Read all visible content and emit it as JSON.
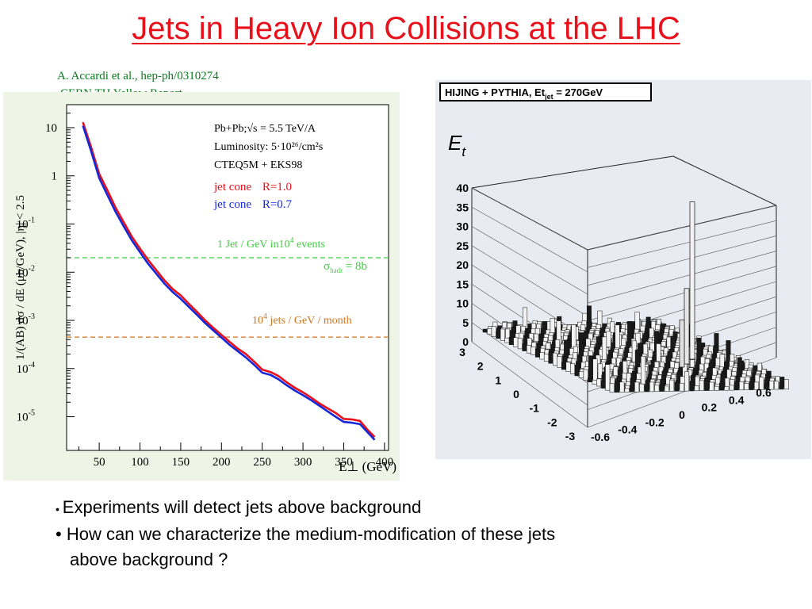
{
  "slide": {
    "title": "Jets in Heavy Ion Collisions at the LHC",
    "source_line1": "A. Accardi  et al., hep-ph/0310274",
    "source_line2": "CERN TH Yellow Report"
  },
  "bullets": [
    "Experiments will detect jets above background",
    "How can we characterize the medium-modification of these jets",
    "above background ?"
  ],
  "colors": {
    "title": "#e8101a",
    "source": "#0a7a1e",
    "cone_r10": "#e8101a",
    "cone_r07": "#1428d8",
    "green_line": "#3ecf3e",
    "orange_line": "#d2731e",
    "chart_bg": "#eef5e6",
    "plot3d_bg": "#e8ecf2"
  },
  "chart_data": [
    {
      "type": "line",
      "title": "",
      "xlabel": "E⊥ (GeV)",
      "ylabel": "1/(AB) dσ / dE  (μb/GeV),  |η| < 2.5",
      "xlim": [
        10,
        405
      ],
      "ylim": [
        2e-06,
        30
      ],
      "yscale": "log",
      "x_ticks": [
        50,
        100,
        150,
        200,
        250,
        300,
        350,
        400
      ],
      "y_ticks": [
        {
          "value": 10,
          "label": "10"
        },
        {
          "value": 1,
          "label": "1"
        },
        {
          "value": 0.1,
          "label": "10",
          "exp": "-1"
        },
        {
          "value": 0.01,
          "label": "10",
          "exp": "-2"
        },
        {
          "value": 0.001,
          "label": "10",
          "exp": "-3"
        },
        {
          "value": 0.0001,
          "label": "10",
          "exp": "-4"
        },
        {
          "value": 1e-05,
          "label": "10",
          "exp": "-5"
        }
      ],
      "info": {
        "line1": "Pb+Pb;√s = 5.5 TeV/A",
        "line2": "Luminosity: 5·10²⁶/cm²s",
        "line3": "CTEQ5M + EKS98"
      },
      "legend": [
        {
          "text": "jet cone",
          "param": "R=1.0",
          "color": "#e8101a"
        },
        {
          "text": "jet cone",
          "param": "R=0.7",
          "color": "#1428d8"
        }
      ],
      "series": [
        {
          "name": "jet cone R=1.0",
          "x": [
            30,
            40,
            50,
            60,
            70,
            80,
            90,
            100,
            110,
            120,
            130,
            140,
            150,
            160,
            170,
            180,
            190,
            200,
            210,
            220,
            230,
            240,
            250,
            260,
            270,
            280,
            290,
            300,
            310,
            320,
            330,
            340,
            350,
            360,
            370,
            380,
            388
          ],
          "y": [
            13,
            4,
            1.1,
            0.5,
            0.22,
            0.11,
            0.055,
            0.031,
            0.018,
            0.011,
            0.0068,
            0.0045,
            0.0033,
            0.0022,
            0.0015,
            0.001,
            0.0007,
            0.0005,
            0.00036,
            0.00026,
            0.0002,
            0.00014,
            9.5e-05,
            8.5e-05,
            7e-05,
            5.2e-05,
            4e-05,
            3.2e-05,
            2.5e-05,
            1.9e-05,
            1.5e-05,
            1.2e-05,
            9e-06,
            8.8e-06,
            8.2e-06,
            5.2e-06,
            3.8e-06
          ]
        },
        {
          "name": "jet cone R=0.7",
          "x": [
            30,
            40,
            50,
            60,
            70,
            80,
            90,
            100,
            110,
            120,
            130,
            140,
            150,
            160,
            170,
            180,
            190,
            200,
            210,
            220,
            230,
            240,
            250,
            260,
            270,
            280,
            290,
            300,
            310,
            320,
            330,
            340,
            350,
            360,
            370,
            380,
            388
          ],
          "y": [
            11,
            3.3,
            0.9,
            0.4,
            0.18,
            0.09,
            0.046,
            0.026,
            0.015,
            0.0093,
            0.0058,
            0.0039,
            0.0028,
            0.0019,
            0.0013,
            0.00088,
            0.00062,
            0.00044,
            0.00031,
            0.00023,
            0.00017,
            0.00012,
            8.2e-05,
            7.4e-05,
            6e-05,
            4.5e-05,
            3.5e-05,
            2.8e-05,
            2.2e-05,
            1.7e-05,
            1.3e-05,
            1e-05,
            7.8e-06,
            7.5e-06,
            7e-06,
            4.6e-06,
            3.3e-06
          ]
        }
      ],
      "reference_lines": [
        {
          "y": 0.02,
          "color": "#3ecf3e",
          "label": "1 Jet / GeV in10",
          "label_exp": "4",
          "label_tail": " events"
        },
        {
          "y": 0.00045,
          "color": "#d2731e",
          "label": "10",
          "label_exp": "4",
          "label_tail": " jets / GeV / month"
        }
      ],
      "annotation": {
        "sigma": "σ",
        "sub": "hadr",
        "tail": " = 8b"
      }
    },
    {
      "type": "surface",
      "title": "HIJING + PYTHIA, Et",
      "title_sub": "jet",
      "title_tail": " = 270GeV",
      "zlabel": "E",
      "zlabel_sub": "t",
      "z_ticks": [
        "40",
        "35",
        "30",
        "25",
        "20",
        "15",
        "10",
        "5",
        "0"
      ],
      "eta_ticks": [
        "3",
        "2",
        "1",
        "0",
        "-1",
        "-2",
        "-3"
      ],
      "phi_ticks": [
        "-0.6",
        "-0.4",
        "-0.2",
        "0",
        "0.2",
        "0.4",
        "0.6"
      ],
      "peak_z": 38
    }
  ]
}
